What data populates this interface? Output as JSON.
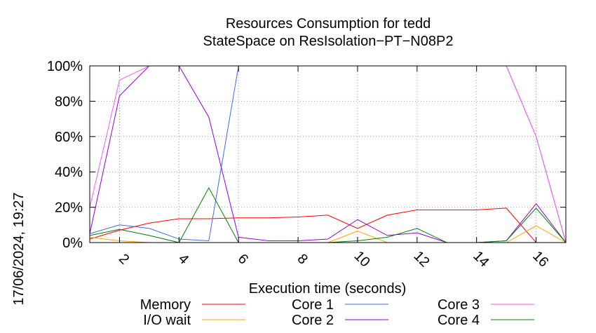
{
  "chart_data": {
    "type": "line",
    "title_line1": "Resources Consumption for tedd",
    "title_line2": "StateSpace on ResIsolation−PT−N08P2",
    "xlabel": "Execution time (seconds)",
    "ylabel": "",
    "side_label": "17/06/2024, 19:27",
    "xlim": [
      1,
      17
    ],
    "ylim": [
      0,
      100
    ],
    "grid": true,
    "legend_position": "bottom",
    "x_ticks": [
      2,
      4,
      6,
      8,
      10,
      12,
      14,
      16
    ],
    "y_ticks": [
      0,
      20,
      40,
      60,
      80,
      100
    ],
    "y_tick_labels": [
      "0%",
      "20%",
      "40%",
      "60%",
      "80%",
      "100%"
    ],
    "x": [
      1,
      2,
      3,
      4,
      5,
      6,
      7,
      8,
      9,
      10,
      11,
      12,
      13,
      14,
      15,
      16,
      17
    ],
    "series": [
      {
        "name": "Memory",
        "color": "#ff0000",
        "values": [
          2,
          7,
          11,
          13.5,
          13.5,
          14,
          14,
          14.5,
          15.5,
          8,
          15.5,
          18.5,
          18.5,
          18.5,
          19.5,
          0,
          0
        ]
      },
      {
        "name": "I/O wait",
        "color": "#ffa500",
        "values": [
          3,
          1,
          0,
          0,
          0,
          0,
          0,
          0,
          0,
          6.5,
          0,
          0,
          0,
          0,
          0,
          9.5,
          0
        ]
      },
      {
        "name": "Core 1",
        "color": "#4169e1",
        "values": [
          5,
          10,
          8,
          2,
          1,
          100,
          100,
          100,
          100,
          100,
          100,
          100,
          100,
          100,
          100,
          60,
          0
        ]
      },
      {
        "name": "Core 2",
        "color": "#9400d3",
        "values": [
          5,
          83,
          100,
          100,
          71,
          3,
          1,
          1,
          2,
          13,
          4,
          5.5,
          0,
          0,
          1,
          22,
          0
        ]
      },
      {
        "name": "Core 3",
        "color": "#ff55ff",
        "values": [
          20,
          92,
          100,
          100,
          100,
          100,
          100,
          100,
          100,
          100,
          100,
          100,
          100,
          100,
          100,
          60,
          0
        ]
      },
      {
        "name": "Core 4",
        "color": "#008000",
        "values": [
          4,
          7.5,
          4,
          0,
          31,
          0,
          0,
          0,
          0,
          1,
          3,
          8,
          0,
          0,
          1,
          19.5,
          0
        ]
      }
    ]
  }
}
